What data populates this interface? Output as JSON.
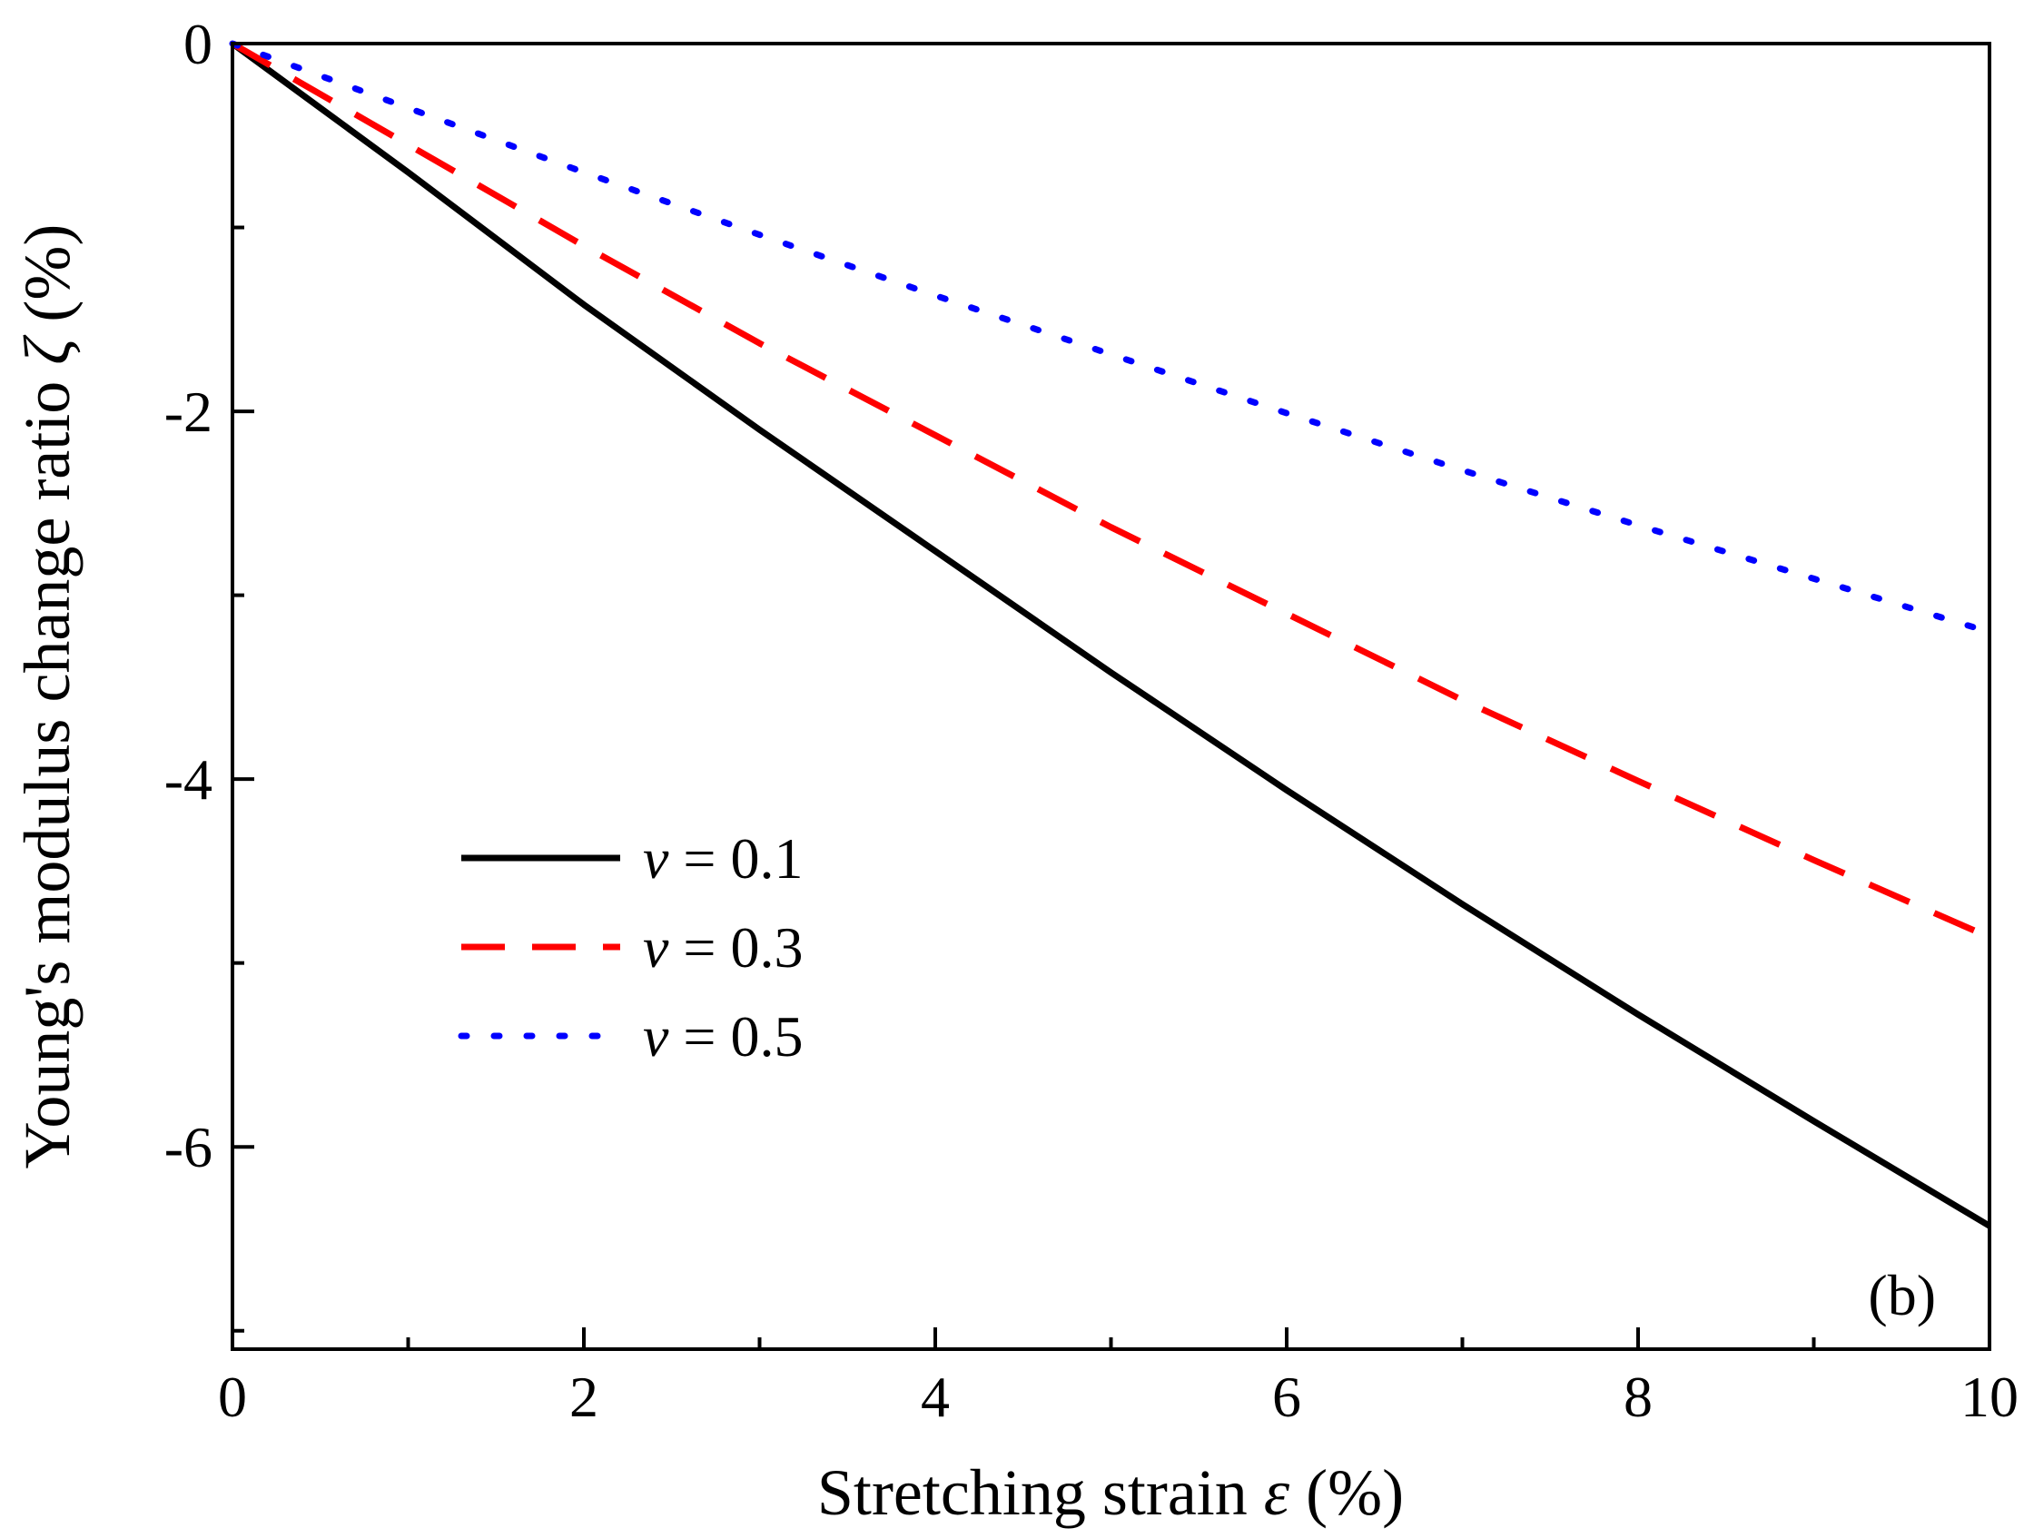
{
  "chart_data": {
    "type": "line",
    "xlabel_prefix": "Stretching strain ",
    "xlabel_symbol": "ε",
    "xlabel_suffix": " (%)",
    "ylabel_prefix": "Young's modulus change ratio ",
    "ylabel_symbol": "ζ",
    "ylabel_suffix": " (%)",
    "xlim": [
      0,
      10
    ],
    "ylim": [
      -7.1,
      0
    ],
    "x_ticks": [
      "0",
      "2",
      "4",
      "6",
      "8",
      "10"
    ],
    "y_ticks": [
      "0",
      "-2",
      "-4",
      "-6"
    ],
    "x_minor_ticks": [
      1,
      3,
      5,
      7,
      9
    ],
    "y_minor_ticks": [
      -1,
      -3,
      -5,
      -7
    ],
    "grid": false,
    "legend_position": "center-left",
    "annotation": "(b)",
    "series": [
      {
        "name": "0.1",
        "symbol": "ν",
        "style": "solid",
        "color": "#000000",
        "x": [
          0,
          1,
          2,
          3,
          4,
          5,
          6,
          7,
          8,
          9,
          10
        ],
        "y": [
          0,
          -0.7,
          -1.42,
          -2.1,
          -2.76,
          -3.42,
          -4.06,
          -4.68,
          -5.28,
          -5.86,
          -6.43
        ]
      },
      {
        "name": "0.3",
        "symbol": "ν",
        "style": "dashed",
        "color": "#ff0000",
        "x": [
          0,
          1,
          2,
          3,
          4,
          5,
          6,
          7,
          8,
          9,
          10
        ],
        "y": [
          0,
          -0.55,
          -1.1,
          -1.63,
          -2.13,
          -2.63,
          -3.1,
          -3.57,
          -4.01,
          -4.44,
          -4.86
        ]
      },
      {
        "name": "0.5",
        "symbol": "ν",
        "style": "dotted",
        "color": "#0000ff",
        "x": [
          0,
          1,
          2,
          3,
          4,
          5,
          6,
          7,
          8,
          9,
          10
        ],
        "y": [
          0,
          -0.35,
          -0.7,
          -1.04,
          -1.37,
          -1.69,
          -2.01,
          -2.32,
          -2.62,
          -2.91,
          -3.2
        ]
      }
    ]
  }
}
